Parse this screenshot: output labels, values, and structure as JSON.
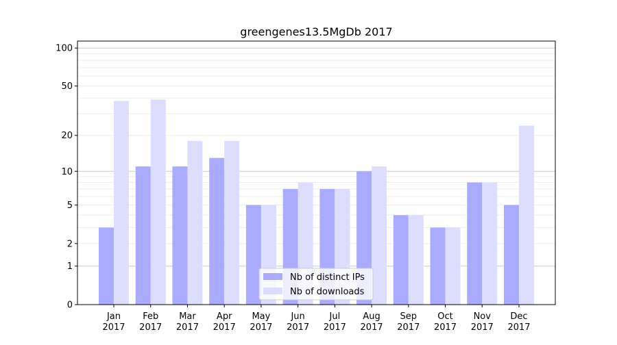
{
  "chart_data": {
    "type": "bar",
    "title": "greengenes13.5MgDb 2017",
    "xlabel": "",
    "ylabel": "",
    "yscale": "log10(y+1)",
    "ylim": [
      0,
      120
    ],
    "yticks": [
      0,
      1,
      2,
      5,
      10,
      20,
      50,
      100
    ],
    "grid": true,
    "legend_position": "lower-center",
    "categories": [
      [
        "Jan",
        "2017"
      ],
      [
        "Feb",
        "2017"
      ],
      [
        "Mar",
        "2017"
      ],
      [
        "Apr",
        "2017"
      ],
      [
        "May",
        "2017"
      ],
      [
        "Jun",
        "2017"
      ],
      [
        "Jul",
        "2017"
      ],
      [
        "Aug",
        "2017"
      ],
      [
        "Sep",
        "2017"
      ],
      [
        "Oct",
        "2017"
      ],
      [
        "Nov",
        "2017"
      ],
      [
        "Dec",
        "2017"
      ]
    ],
    "series": [
      {
        "name": "Nb of distinct IPs",
        "color": "#aaaaff",
        "values": [
          3,
          11,
          11,
          13,
          5,
          7,
          7,
          10,
          4,
          3,
          8,
          5
        ]
      },
      {
        "name": "Nb of downloads",
        "color": "#ddddff",
        "values": [
          38,
          39,
          18,
          18,
          5,
          8,
          7,
          11,
          4,
          3,
          8,
          24
        ]
      }
    ]
  }
}
